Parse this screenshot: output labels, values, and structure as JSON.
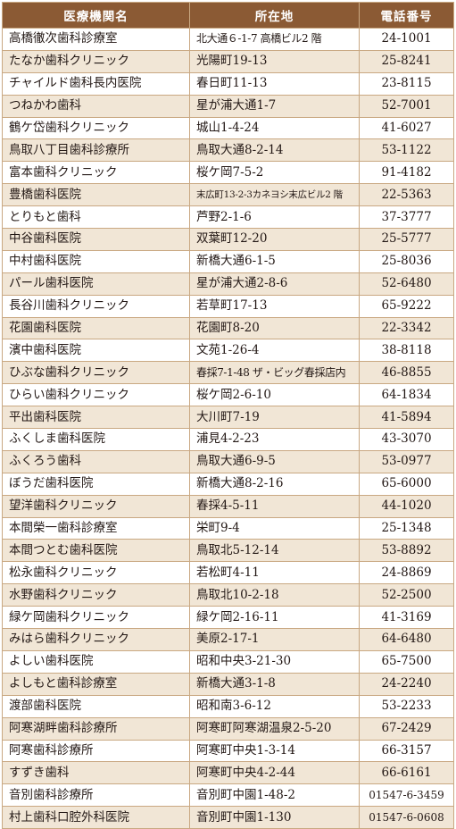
{
  "headers": {
    "name": "医療機関名",
    "address": "所在地",
    "phone": "電話番号"
  },
  "rows": [
    {
      "name": "高橋徹次歯科診療室",
      "address": "北大通６-1-7 高橋ビル2 階",
      "phone": "24-1001"
    },
    {
      "name": "たなか歯科クリニック",
      "address": "光陽町19-13",
      "phone": "25-8241"
    },
    {
      "name": "チャイルド歯科長内医院",
      "address": "春日町11-13",
      "phone": "23-8115"
    },
    {
      "name": "つねかわ歯科",
      "address": "星が浦大通1-7",
      "phone": "52-7001"
    },
    {
      "name": "鶴ケ岱歯科クリニック",
      "address": "城山1-4-24",
      "phone": "41-6027"
    },
    {
      "name": "鳥取八丁目歯科診療所",
      "address": "鳥取大通8-2-14",
      "phone": "53-1122"
    },
    {
      "name": "富本歯科クリニック",
      "address": "桜ケ岡7-5-2",
      "phone": "91-4182"
    },
    {
      "name": "豊橋歯科医院",
      "address": "末広町13-2-3カネヨシ末広ビル2 階",
      "phone": "22-5363"
    },
    {
      "name": "とりもと歯科",
      "address": "芦野2-1-6",
      "phone": "37-3777"
    },
    {
      "name": "中谷歯科医院",
      "address": "双葉町12-20",
      "phone": "25-5777"
    },
    {
      "name": "中村歯科医院",
      "address": "新橋大通6-1-5",
      "phone": "25-8036"
    },
    {
      "name": "パール歯科医院",
      "address": "星が浦大通2-8-6",
      "phone": "52-6480"
    },
    {
      "name": "長谷川歯科クリニック",
      "address": "若草町17-13",
      "phone": "65-9222"
    },
    {
      "name": "花園歯科医院",
      "address": "花園町8-20",
      "phone": "22-3342"
    },
    {
      "name": "濱中歯科医院",
      "address": "文苑1-26-4",
      "phone": "38-8118"
    },
    {
      "name": "ひぶな歯科クリニック",
      "address": "春採7-1-48 ザ・ビッグ春採店内",
      "phone": "46-8855"
    },
    {
      "name": "ひらい歯科クリニック",
      "address": "桜ケ岡2-6-10",
      "phone": "64-1834"
    },
    {
      "name": "平出歯科医院",
      "address": "大川町7-19",
      "phone": "41-5894"
    },
    {
      "name": "ふくしま歯科医院",
      "address": "浦見4-2-23",
      "phone": "43-3070"
    },
    {
      "name": "ふくろう歯科",
      "address": "鳥取大通6-9-5",
      "phone": "53-0977"
    },
    {
      "name": "ぼうだ歯科医院",
      "address": "新橋大通8-2-16",
      "phone": "65-6000"
    },
    {
      "name": "望洋歯科クリニック",
      "address": "春採4-5-11",
      "phone": "44-1020"
    },
    {
      "name": "本間榮一歯科診療室",
      "address": "栄町9-4",
      "phone": "25-1348"
    },
    {
      "name": "本間つとむ歯科医院",
      "address": "鳥取北5-12-14",
      "phone": "53-8892"
    },
    {
      "name": "松永歯科クリニック",
      "address": "若松町4-11",
      "phone": "24-8869"
    },
    {
      "name": "水野歯科クリニック",
      "address": "鳥取北10-2-18",
      "phone": "52-2500"
    },
    {
      "name": "緑ケ岡歯科クリニック",
      "address": "緑ケ岡2-16-11",
      "phone": "41-3169"
    },
    {
      "name": "みはら歯科クリニック",
      "address": "美原2-17-1",
      "phone": "64-6480"
    },
    {
      "name": "よしい歯科医院",
      "address": "昭和中央3-21-30",
      "phone": "65-7500"
    },
    {
      "name": "よしもと歯科診療室",
      "address": "新橋大通3-1-8",
      "phone": "24-2240"
    },
    {
      "name": "渡部歯科医院",
      "address": "昭和南3-6-12",
      "phone": "53-2233"
    },
    {
      "name": "阿寒湖畔歯科診療所",
      "address": "阿寒町阿寒湖温泉2-5-20",
      "phone": "67-2429"
    },
    {
      "name": "阿寒歯科診療所",
      "address": "阿寒町中央1-3-14",
      "phone": "66-3157"
    },
    {
      "name": "すずき歯科",
      "address": "阿寒町中央4-2-44",
      "phone": "66-6161"
    },
    {
      "name": "音別歯科診療所",
      "address": "音別町中園1-48-2",
      "phone": "01547-6-3459"
    },
    {
      "name": "村上歯科口腔外科医院",
      "address": "音別町中園1-130",
      "phone": "01547-6-0608"
    }
  ]
}
